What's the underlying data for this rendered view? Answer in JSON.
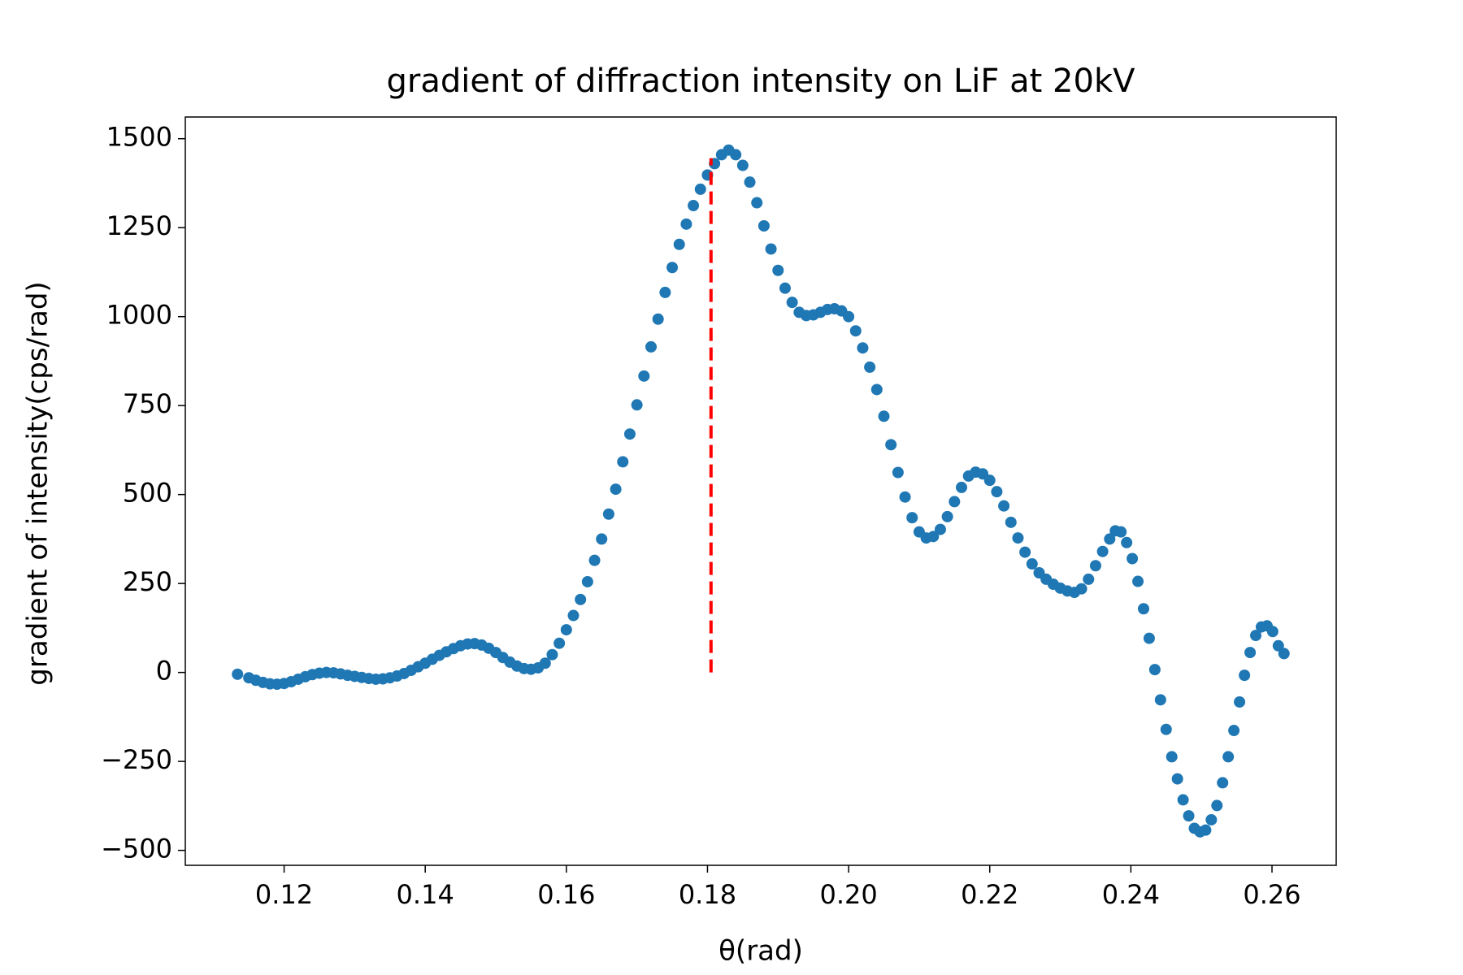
{
  "chart_data": {
    "type": "scatter",
    "title": "gradient of diffraction intensity on LiF at 20kV",
    "xlabel": "θ(rad)",
    "ylabel": "gradient of intensity(cps/rad)",
    "color": "#1f77b4",
    "x": [
      0.1134,
      0.115,
      0.116,
      0.117,
      0.118,
      0.119,
      0.12,
      0.121,
      0.122,
      0.123,
      0.124,
      0.125,
      0.126,
      0.127,
      0.128,
      0.129,
      0.13,
      0.131,
      0.132,
      0.133,
      0.134,
      0.135,
      0.136,
      0.137,
      0.138,
      0.139,
      0.14,
      0.141,
      0.142,
      0.143,
      0.144,
      0.145,
      0.146,
      0.147,
      0.148,
      0.149,
      0.15,
      0.151,
      0.152,
      0.153,
      0.154,
      0.155,
      0.156,
      0.157,
      0.158,
      0.159,
      0.16,
      0.161,
      0.162,
      0.163,
      0.164,
      0.165,
      0.166,
      0.167,
      0.168,
      0.169,
      0.17,
      0.171,
      0.172,
      0.173,
      0.174,
      0.175,
      0.176,
      0.177,
      0.178,
      0.179,
      0.18,
      0.181,
      0.182,
      0.183,
      0.184,
      0.185,
      0.186,
      0.187,
      0.188,
      0.189,
      0.19,
      0.191,
      0.192,
      0.193,
      0.194,
      0.195,
      0.196,
      0.197,
      0.198,
      0.199,
      0.2,
      0.201,
      0.202,
      0.203,
      0.204,
      0.205,
      0.206,
      0.207,
      0.208,
      0.209,
      0.21,
      0.211,
      0.212,
      0.213,
      0.214,
      0.215,
      0.216,
      0.217,
      0.218,
      0.219,
      0.22,
      0.221,
      0.222,
      0.223,
      0.224,
      0.225,
      0.226,
      0.227,
      0.228,
      0.229,
      0.23,
      0.231,
      0.232,
      0.233,
      0.234,
      0.235,
      0.236,
      0.237,
      0.2378,
      0.2386,
      0.2394,
      0.2402,
      0.241,
      0.2418,
      0.2426,
      0.2434,
      0.2442,
      0.245,
      0.2458,
      0.2466,
      0.2474,
      0.2482,
      0.249,
      0.2498,
      0.2506,
      0.2514,
      0.2522,
      0.253,
      0.2538,
      0.2546,
      0.2554,
      0.2561,
      0.2569,
      0.2577,
      0.2585,
      0.2593,
      0.2601,
      0.2609,
      0.2617
    ],
    "values": [
      -5,
      -15,
      -22,
      -28,
      -32,
      -33,
      -31,
      -26,
      -19,
      -12,
      -6,
      -2,
      0,
      -1,
      -4,
      -8,
      -11,
      -14,
      -17,
      -19,
      -18,
      -15,
      -10,
      -3,
      6,
      16,
      26,
      37,
      48,
      58,
      67,
      75,
      80,
      81,
      77,
      68,
      56,
      42,
      29,
      18,
      11,
      9,
      13,
      26,
      50,
      82,
      120,
      160,
      205,
      255,
      315,
      375,
      445,
      515,
      592,
      670,
      752,
      833,
      915,
      993,
      1068,
      1138,
      1203,
      1260,
      1312,
      1358,
      1398,
      1430,
      1455,
      1468,
      1455,
      1425,
      1378,
      1320,
      1255,
      1190,
      1130,
      1080,
      1040,
      1012,
      1003,
      1005,
      1012,
      1020,
      1022,
      1016,
      1000,
      960,
      912,
      858,
      795,
      720,
      640,
      562,
      493,
      435,
      395,
      378,
      382,
      402,
      438,
      480,
      520,
      552,
      563,
      558,
      540,
      508,
      468,
      422,
      378,
      338,
      305,
      280,
      262,
      248,
      237,
      229,
      225,
      235,
      262,
      300,
      340,
      375,
      398,
      395,
      365,
      320,
      256,
      179,
      96,
      8,
      -77,
      -160,
      -237,
      -299,
      -358,
      -403,
      -438,
      -448,
      -443,
      -414,
      -374,
      -310,
      -237,
      -163,
      -83,
      -8,
      56,
      104,
      128,
      131,
      115,
      75,
      53
    ],
    "vline": {
      "x": 0.1805,
      "ymin": 0,
      "ymax": 1445,
      "color": "#ff0000",
      "style": "dashed"
    },
    "xlim": [
      0.106,
      0.2691
    ],
    "ylim": [
      -542,
      1561
    ],
    "xticks": [
      0.12,
      0.14,
      0.16,
      0.18,
      {
        "value": 0.2,
        "label": "0.20"
      },
      0.22,
      0.24,
      0.26
    ],
    "yticks": [
      {
        "value": -500,
        "label": "−500"
      },
      {
        "value": -250,
        "label": "−250"
      },
      0,
      250,
      500,
      750,
      1000,
      1250,
      1500
    ]
  }
}
